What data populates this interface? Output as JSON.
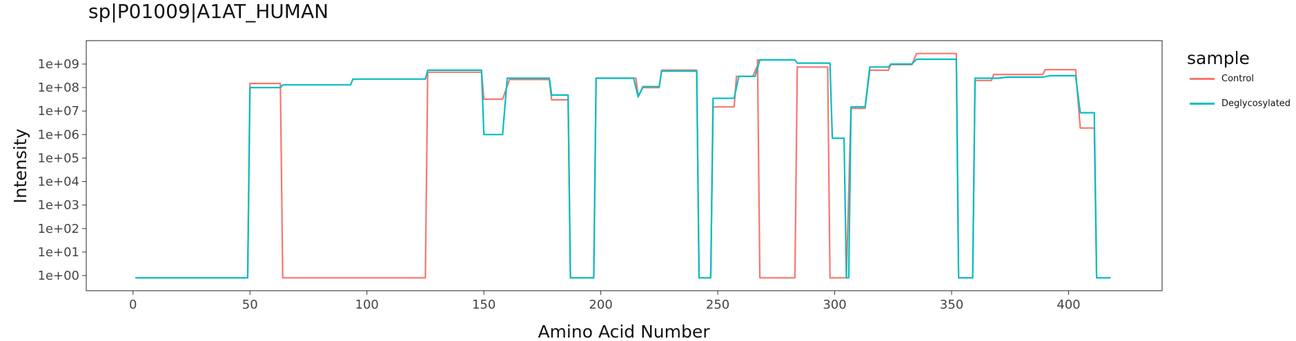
{
  "chart_data": {
    "type": "line",
    "title": "sp|P01009|A1AT_HUMAN",
    "xlabel": "Amino Acid Number",
    "ylabel": "Intensity",
    "x_ticks": [
      0,
      50,
      100,
      150,
      200,
      250,
      300,
      350,
      400
    ],
    "y_ticks": [
      "1e+00",
      "1e+01",
      "1e+02",
      "1e+03",
      "1e+04",
      "1e+05",
      "1e+06",
      "1e+07",
      "1e+08",
      "1e+09"
    ],
    "y_scale": "log10",
    "xlim": [
      -20,
      440
    ],
    "grid": false,
    "legend": {
      "title": "sample",
      "position": "right"
    },
    "colors": {
      "Control": "#F8766D",
      "Deglycosylated": "#00BFC4"
    },
    "series": [
      {
        "name": "Control",
        "points": [
          [
            1,
            0.8
          ],
          [
            49,
            0.8
          ],
          [
            50,
            150000000.0
          ],
          [
            63,
            150000000.0
          ],
          [
            64,
            0.8
          ],
          [
            125,
            0.8
          ],
          [
            126,
            450000000.0
          ],
          [
            149,
            450000000.0
          ],
          [
            150,
            32000000.0
          ],
          [
            158,
            32000000.0
          ],
          [
            161,
            220000000.0
          ],
          [
            178,
            220000000.0
          ],
          [
            179,
            30000000.0
          ],
          [
            186,
            30000000.0
          ],
          [
            187,
            0.8
          ],
          [
            197,
            0.8
          ],
          [
            198,
            250000000.0
          ],
          [
            215,
            250000000.0
          ],
          [
            216,
            45000000.0
          ],
          [
            218,
            100000000.0
          ],
          [
            225,
            100000000.0
          ],
          [
            226,
            550000000.0
          ],
          [
            241,
            550000000.0
          ],
          [
            242,
            0.8
          ],
          [
            247,
            0.8
          ],
          [
            248,
            15000000.0
          ],
          [
            257,
            15000000.0
          ],
          [
            258,
            300000000.0
          ],
          [
            265,
            300000000.0
          ],
          [
            268,
            1500000000.0
          ],
          [
            267,
            1500000000.0
          ],
          [
            268,
            0.8
          ],
          [
            283,
            0.8
          ],
          [
            284,
            750000000.0
          ],
          [
            297,
            750000000.0
          ],
          [
            298,
            0.8
          ],
          [
            305,
            0.8
          ],
          [
            307,
            13000000.0
          ],
          [
            313,
            13000000.0
          ],
          [
            315,
            550000000.0
          ],
          [
            323,
            550000000.0
          ],
          [
            324,
            950000000.0
          ],
          [
            333,
            950000000.0
          ],
          [
            335,
            2800000000.0
          ],
          [
            352,
            2800000000.0
          ],
          [
            353,
            0.8
          ],
          [
            359,
            0.8
          ],
          [
            360,
            200000000.0
          ],
          [
            367,
            200000000.0
          ],
          [
            368,
            360000000.0
          ],
          [
            389,
            360000000.0
          ],
          [
            390,
            580000000.0
          ],
          [
            403,
            580000000.0
          ],
          [
            405,
            1900000.0
          ],
          [
            411,
            1900000.0
          ],
          [
            412,
            0.8
          ],
          [
            418,
            0.8
          ]
        ]
      },
      {
        "name": "Deglycosylated",
        "points": [
          [
            1,
            0.8
          ],
          [
            49,
            0.8
          ],
          [
            50,
            100000000.0
          ],
          [
            63,
            100000000.0
          ],
          [
            64,
            130000000.0
          ],
          [
            93,
            130000000.0
          ],
          [
            94,
            230000000.0
          ],
          [
            125,
            230000000.0
          ],
          [
            126,
            550000000.0
          ],
          [
            149,
            550000000.0
          ],
          [
            150,
            1000000.0
          ],
          [
            158,
            1000000.0
          ],
          [
            160,
            250000000.0
          ],
          [
            178,
            250000000.0
          ],
          [
            179,
            48000000.0
          ],
          [
            186,
            48000000.0
          ],
          [
            187,
            0.8
          ],
          [
            197,
            0.8
          ],
          [
            198,
            250000000.0
          ],
          [
            214,
            250000000.0
          ],
          [
            216,
            40000000.0
          ],
          [
            218,
            110000000.0
          ],
          [
            225,
            110000000.0
          ],
          [
            226,
            500000000.0
          ],
          [
            241,
            500000000.0
          ],
          [
            242,
            0.8
          ],
          [
            247,
            0.8
          ],
          [
            248,
            35000000.0
          ],
          [
            257,
            35000000.0
          ],
          [
            259,
            300000000.0
          ],
          [
            266,
            300000000.0
          ],
          [
            268,
            1500000000.0
          ],
          [
            283,
            1500000000.0
          ],
          [
            284,
            1100000000.0
          ],
          [
            298,
            1100000000.0
          ],
          [
            299,
            700000.0
          ],
          [
            304,
            700000.0
          ],
          [
            305,
            0.8
          ],
          [
            306,
            0.8
          ],
          [
            307,
            15000000.0
          ],
          [
            313,
            15000000.0
          ],
          [
            315,
            750000000.0
          ],
          [
            323,
            750000000.0
          ],
          [
            324,
            1000000000.0
          ],
          [
            333,
            1000000000.0
          ],
          [
            335,
            1600000000.0
          ],
          [
            352,
            1600000000.0
          ],
          [
            353,
            0.8
          ],
          [
            359,
            0.8
          ],
          [
            360,
            250000000.0
          ],
          [
            370,
            250000000.0
          ],
          [
            374,
            280000000.0
          ],
          [
            389,
            280000000.0
          ],
          [
            392,
            320000000.0
          ],
          [
            403,
            320000000.0
          ],
          [
            405,
            8500000.0
          ],
          [
            411,
            8500000.0
          ],
          [
            412,
            0.8
          ],
          [
            418,
            0.8
          ]
        ]
      }
    ]
  }
}
